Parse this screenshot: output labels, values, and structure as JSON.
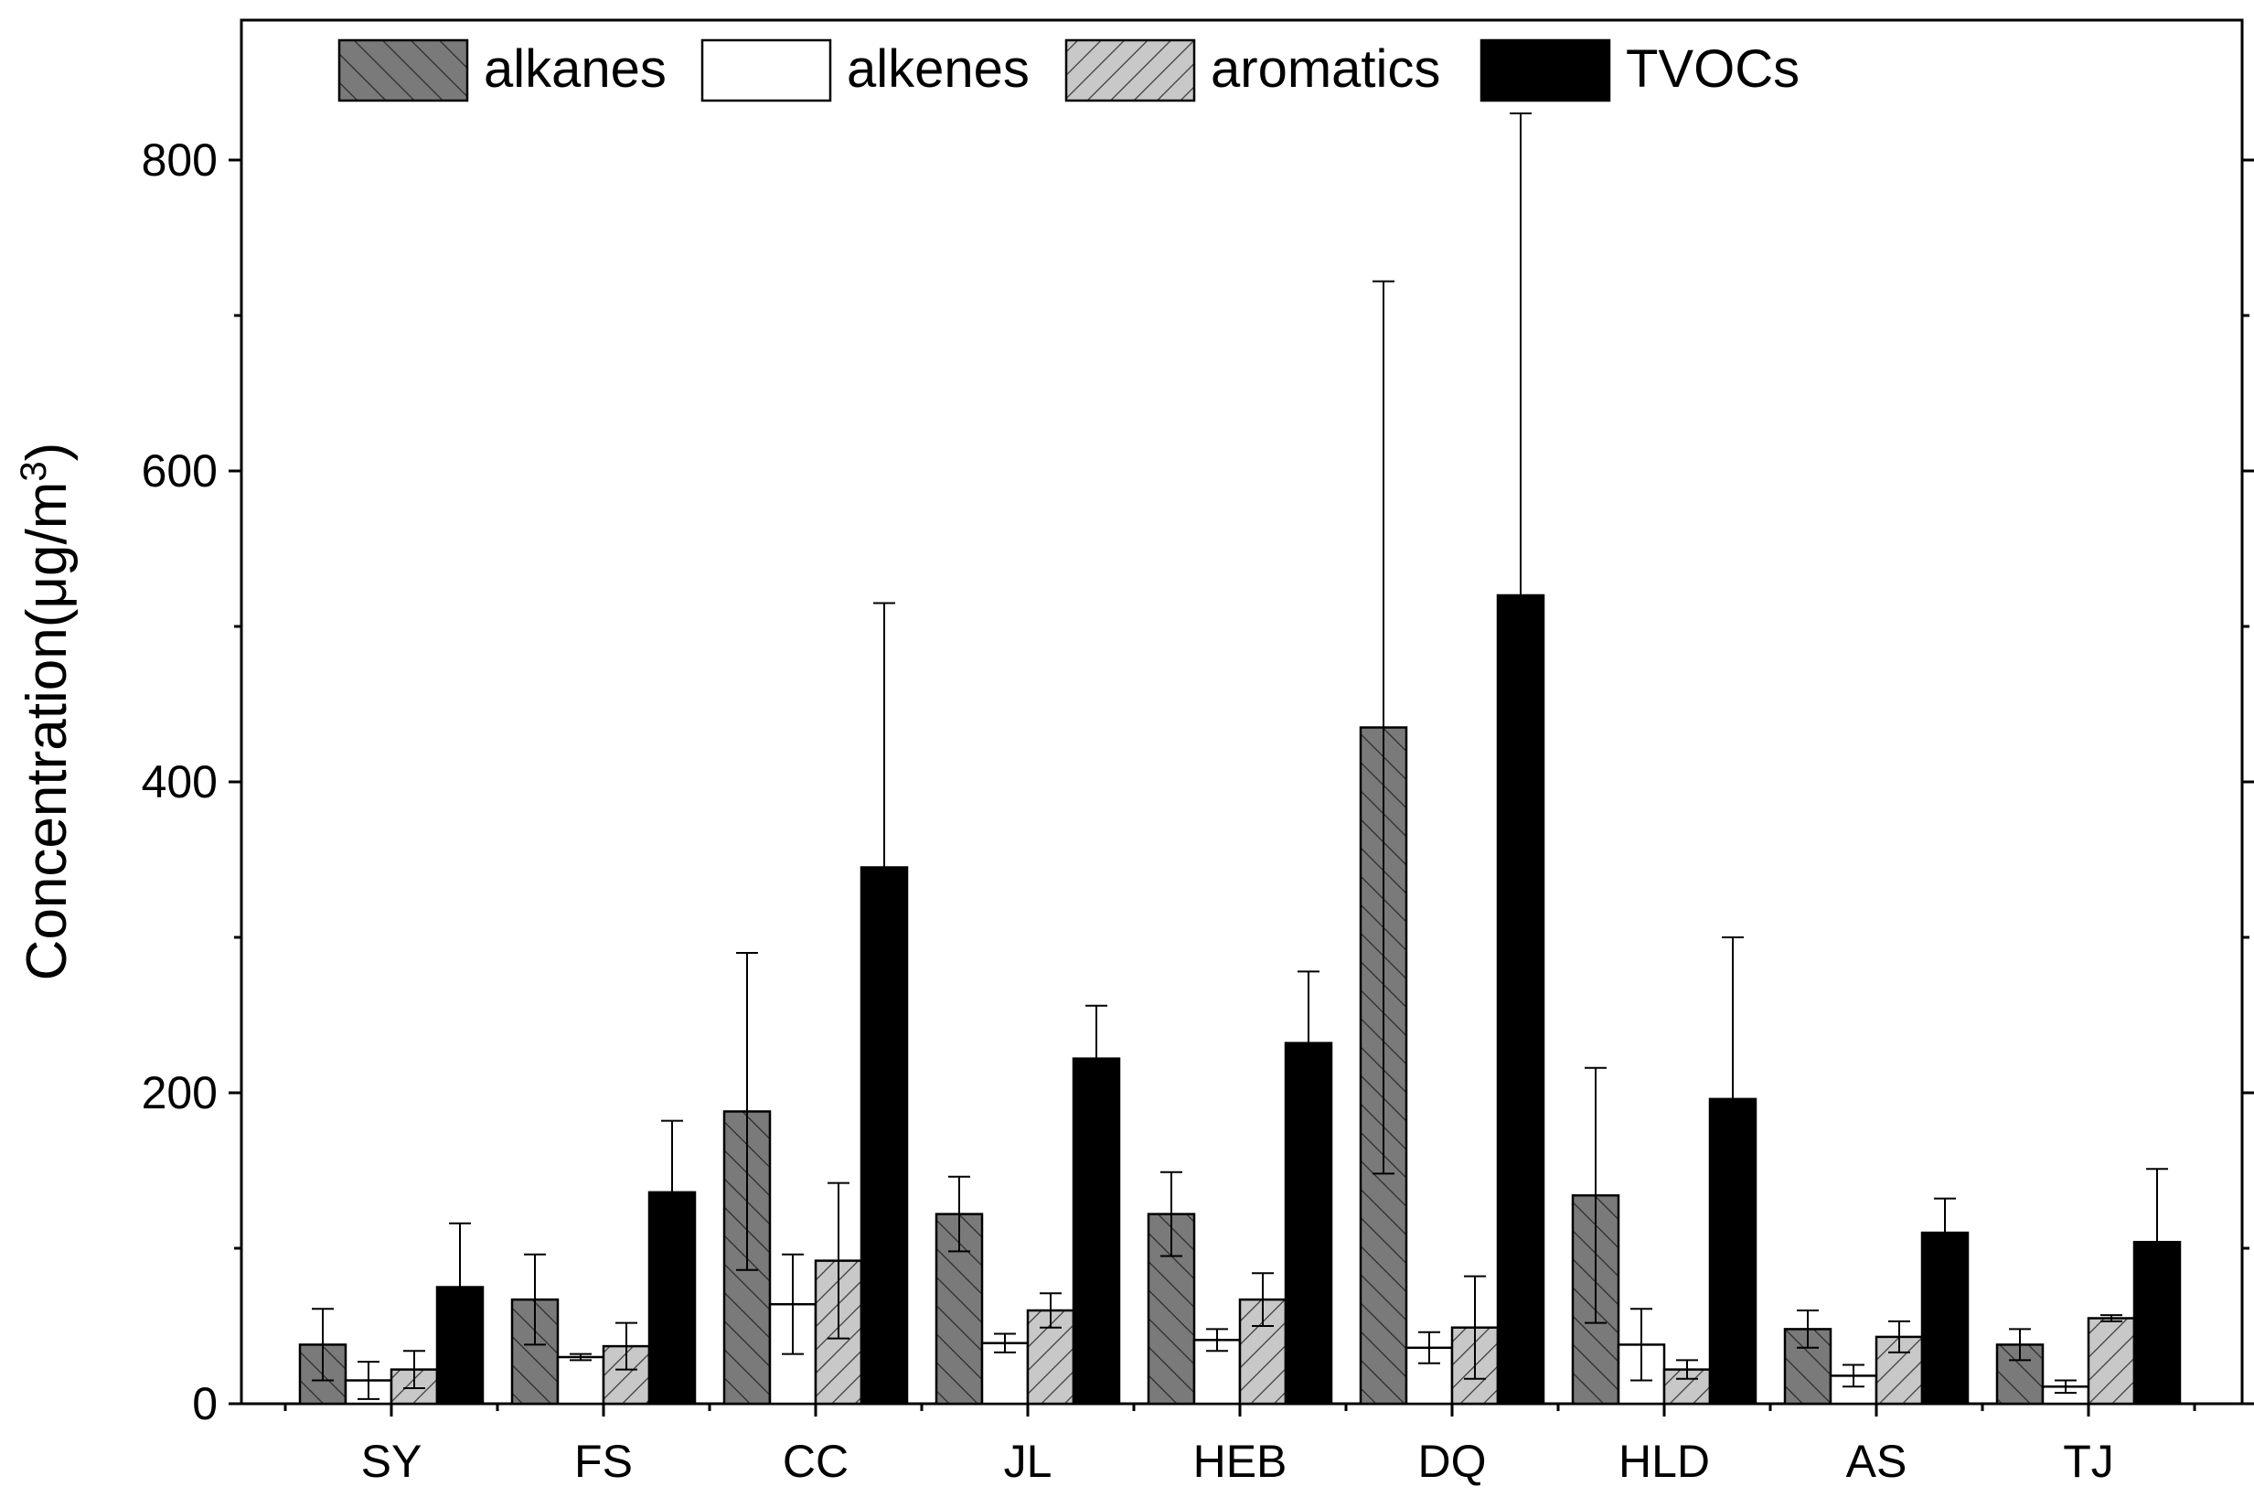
{
  "chart_data": {
    "type": "bar",
    "title": "",
    "xlabel": "",
    "ylabel": "Concentration(μg/m",
    "ylabel_superscript": "3",
    "ylabel_close": ")",
    "ylim": [
      0,
      890
    ],
    "yticks": [
      0,
      200,
      400,
      600,
      800
    ],
    "categories": [
      "SY",
      "FS",
      "CC",
      "JL",
      "HEB",
      "DQ",
      "HLD",
      "AS",
      "TJ"
    ],
    "series": [
      {
        "name": "alkanes",
        "fill": "#7a7a7a",
        "pattern": "hatch-forward",
        "values": [
          38,
          67,
          188,
          122,
          122,
          435,
          134,
          48,
          38
        ],
        "errors": [
          23,
          29,
          102,
          24,
          27,
          287,
          82,
          12,
          10
        ]
      },
      {
        "name": "alkenes",
        "fill": "#ffffff",
        "pattern": "none",
        "values": [
          15,
          30,
          64,
          39,
          41,
          36,
          38,
          18,
          11
        ],
        "errors": [
          12,
          2,
          32,
          6,
          7,
          10,
          23,
          7,
          4
        ]
      },
      {
        "name": "aromatics",
        "fill": "#c8c8c8",
        "pattern": "hatch-back",
        "values": [
          22,
          37,
          92,
          60,
          67,
          49,
          22,
          43,
          55
        ],
        "errors": [
          12,
          15,
          50,
          11,
          17,
          33,
          6,
          10,
          2
        ]
      },
      {
        "name": "TVOCs",
        "fill": "#000000",
        "pattern": "none",
        "values": [
          75,
          136,
          345,
          222,
          232,
          520,
          196,
          110,
          104
        ],
        "errors": [
          41,
          46,
          170,
          34,
          46,
          310,
          104,
          22,
          47
        ]
      }
    ],
    "legend_position": "top-left",
    "grid": false
  }
}
